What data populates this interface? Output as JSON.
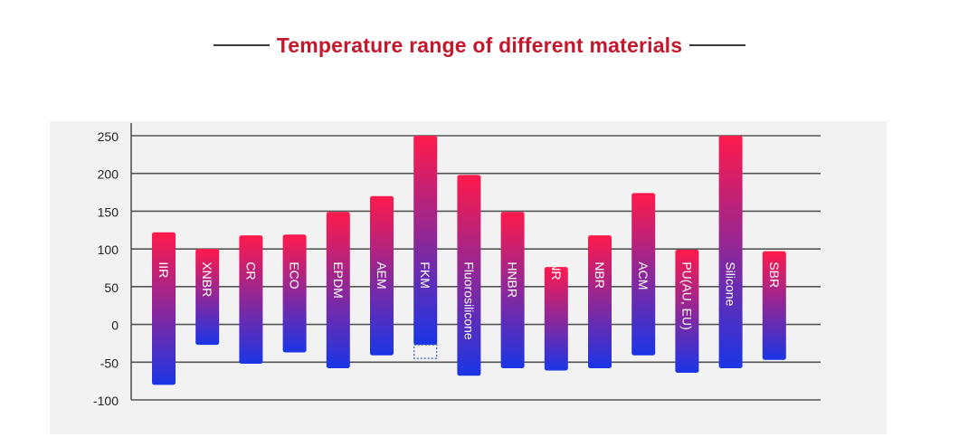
{
  "heading": {
    "title": "Temperature range of different materials"
  },
  "colors": {
    "title": "#c4172c",
    "bar_top": "#ff1a4b",
    "bar_bottom": "#1a35e6",
    "label": "#ffffff",
    "axis_text": "#222222",
    "grid": "#555555"
  },
  "chart_data": {
    "type": "bar",
    "title": "Temperature range of different materials",
    "xlabel": "",
    "ylabel": "",
    "ylim": [
      -100,
      250
    ],
    "yticks": [
      250,
      200,
      150,
      100,
      50,
      0,
      -50,
      -100
    ],
    "ytick_labels": [
      "250",
      "200",
      "150",
      "100",
      "50",
      "0",
      "-50",
      "-100"
    ],
    "grid": true,
    "categories": [
      "IIR",
      "XNBR",
      "CR",
      "ECO",
      "EPDM",
      "AEM",
      "FKM",
      "Fluorosilicone",
      "HNBR",
      "NR",
      "NBR",
      "ACM",
      "PU(AU, EU)",
      "Silicone",
      "SBR"
    ],
    "ranges": [
      {
        "label": "IIR",
        "min": -80,
        "max": 122
      },
      {
        "label": "XNBR",
        "min": -27,
        "max": 100
      },
      {
        "label": "CR",
        "min": -52,
        "max": 118
      },
      {
        "label": "ECO",
        "min": -37,
        "max": 119
      },
      {
        "label": "EPDM",
        "min": -58,
        "max": 149
      },
      {
        "label": "AEM",
        "min": -41,
        "max": 170
      },
      {
        "label": "FKM",
        "min": -27,
        "max": 250
      },
      {
        "label": "Fluorosilicone",
        "min": -68,
        "max": 198
      },
      {
        "label": "HNBR",
        "min": -58,
        "max": 149
      },
      {
        "label": "NR",
        "min": -61,
        "max": 76
      },
      {
        "label": "NBR",
        "min": -58,
        "max": 118
      },
      {
        "label": "ACM",
        "min": -41,
        "max": 174
      },
      {
        "label": "PU(AU, EU)",
        "min": -64,
        "max": 99
      },
      {
        "label": "Silicone",
        "min": -58,
        "max": 250
      },
      {
        "label": "SBR",
        "min": -47,
        "max": 97
      }
    ],
    "annotations": [
      {
        "label": "FKM",
        "type": "dashed-extension",
        "min": -45,
        "max": -27
      }
    ]
  }
}
